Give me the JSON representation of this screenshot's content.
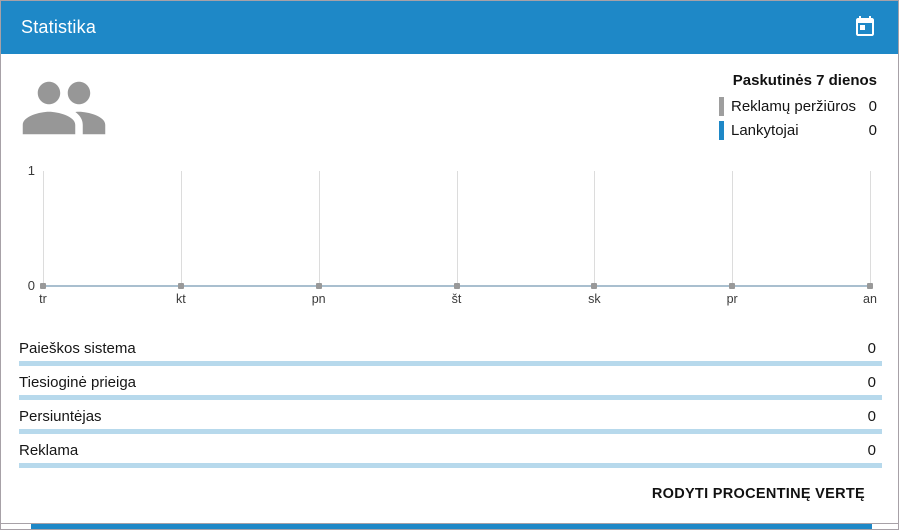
{
  "colors": {
    "accent_blue": "#1e88c7",
    "legend_gray": "#9e9e9e",
    "bar_light_blue": "#b7d9ec",
    "chart_baseline": "#a9bfcf",
    "chart_grid": "#dcdcdc"
  },
  "header": {
    "title": "Statistika"
  },
  "summary": {
    "period_label": "Paskutinės 7 dienos",
    "legend": [
      {
        "label": "Reklamų peržiūros",
        "value": "0"
      },
      {
        "label": "Lankytojai",
        "value": "0"
      }
    ]
  },
  "chart_data": {
    "type": "line",
    "categories": [
      "tr",
      "kt",
      "pn",
      "št",
      "sk",
      "pr",
      "an"
    ],
    "series": [
      {
        "name": "Reklamų peržiūros",
        "values": [
          0,
          0,
          0,
          0,
          0,
          0,
          0
        ],
        "color": "#9e9e9e"
      },
      {
        "name": "Lankytojai",
        "values": [
          0,
          0,
          0,
          0,
          0,
          0,
          0
        ],
        "color": "#1e88c7"
      }
    ],
    "ylim": [
      0,
      1
    ],
    "yticks": [
      "1",
      "0"
    ],
    "grid": "vertical-only",
    "legend_position": "top-right",
    "title": "",
    "xlabel": "",
    "ylabel": ""
  },
  "sources": [
    {
      "label": "Paieškos sistema",
      "value": "0"
    },
    {
      "label": "Tiesioginė prieiga",
      "value": "0"
    },
    {
      "label": "Persiuntėjas",
      "value": "0"
    },
    {
      "label": "Reklama",
      "value": "0"
    }
  ],
  "footer": {
    "show_percentage_label": "RODYTI PROCENTINĘ VERTĘ"
  }
}
